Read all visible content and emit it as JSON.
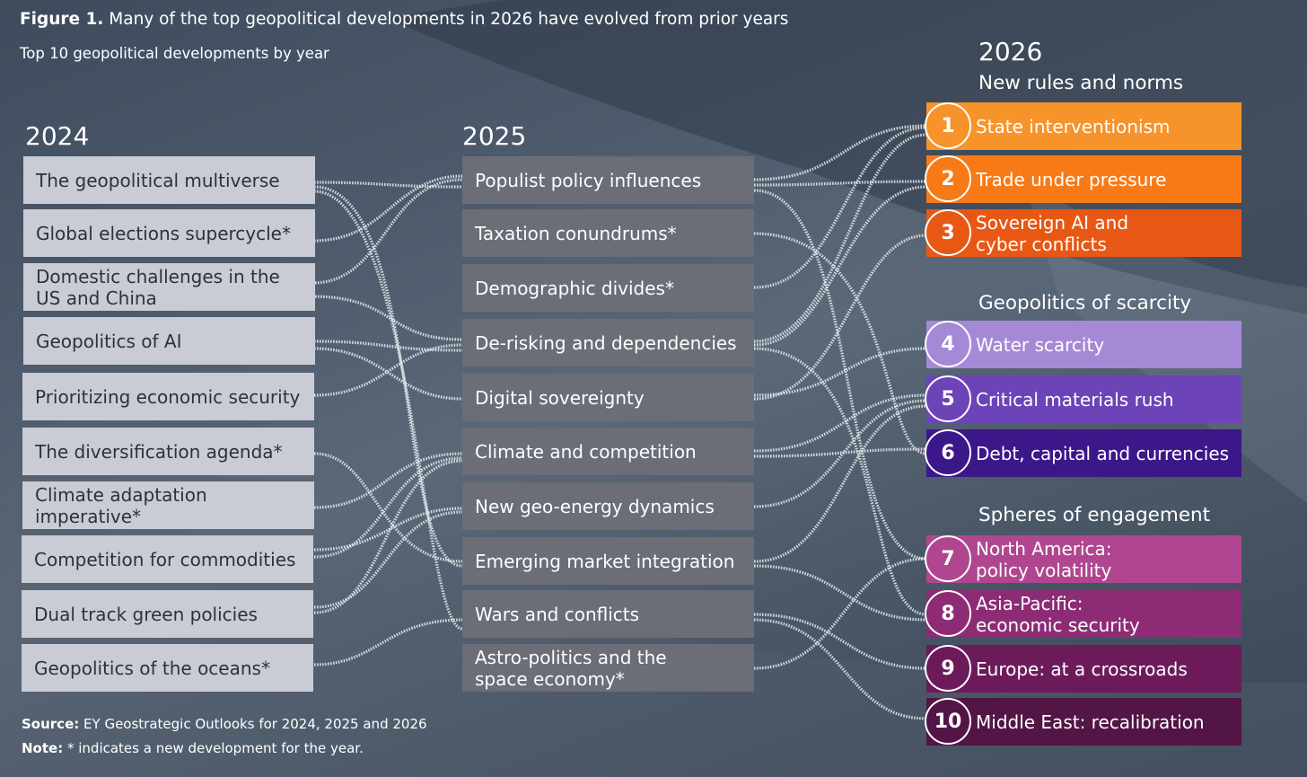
{
  "figure": {
    "label": "Figure 1.",
    "title": "Many of the top geopolitical developments in 2026 have evolved from prior years",
    "subtitle": "Top 10 geopolitical developments by year"
  },
  "col2024": {
    "year": "2024",
    "items": [
      "The geopolitical multiverse",
      "Global elections supercycle*",
      "Domestic challenges in the US and China",
      "Geopolitics of AI",
      "Prioritizing economic security",
      "The diversification agenda*",
      "Climate adaptation imperative*",
      "Competition for commodities",
      "Dual track green policies",
      "Geopolitics of the oceans*"
    ]
  },
  "col2025": {
    "year": "2025",
    "items": [
      "Populist policy influences",
      "Taxation conundrums*",
      "Demographic divides*",
      "De-risking and dependencies",
      "Digital sovereignty",
      "Climate and competition",
      "New geo-energy dynamics",
      "Emerging market integration",
      "Wars and conflicts",
      "Astro-politics and the space economy*"
    ]
  },
  "col2026": {
    "year": "2026",
    "groups": [
      "New rules and norms",
      "Geopolitics of scarcity",
      "Spheres of engagement"
    ],
    "items": [
      {
        "num": "1",
        "label": "State interventionism",
        "color": "#f7932b"
      },
      {
        "num": "2",
        "label": "Trade under pressure",
        "color": "#f77a17"
      },
      {
        "num": "3",
        "label": "Sovereign AI and cyber conflicts",
        "color": "#e85714"
      },
      {
        "num": "4",
        "label": "Water scarcity",
        "color": "#a689d6"
      },
      {
        "num": "5",
        "label": "Critical materials rush",
        "color": "#6c44b8"
      },
      {
        "num": "6",
        "label": "Debt, capital and currencies",
        "color": "#3b178a"
      },
      {
        "num": "7",
        "label": "North America: policy volatility",
        "color": "#b0468f"
      },
      {
        "num": "8",
        "label": "Asia-Pacific: economic security",
        "color": "#8d2c75"
      },
      {
        "num": "9",
        "label": "Europe: at a crossroads",
        "color": "#6d1a5b"
      },
      {
        "num": "10",
        "label": "Middle East: recalibration",
        "color": "#531545"
      }
    ]
  },
  "footer": {
    "source_label": "Source:",
    "source_text": "EY Geostrategic Outlooks for 2024, 2025 and 2026",
    "note_label": "Note:",
    "note_text": "* indicates a new development for the year."
  },
  "colors": {
    "box2024": "#c9ccd4",
    "box2025": "#6b6d77",
    "connector": "#e9ecef"
  }
}
